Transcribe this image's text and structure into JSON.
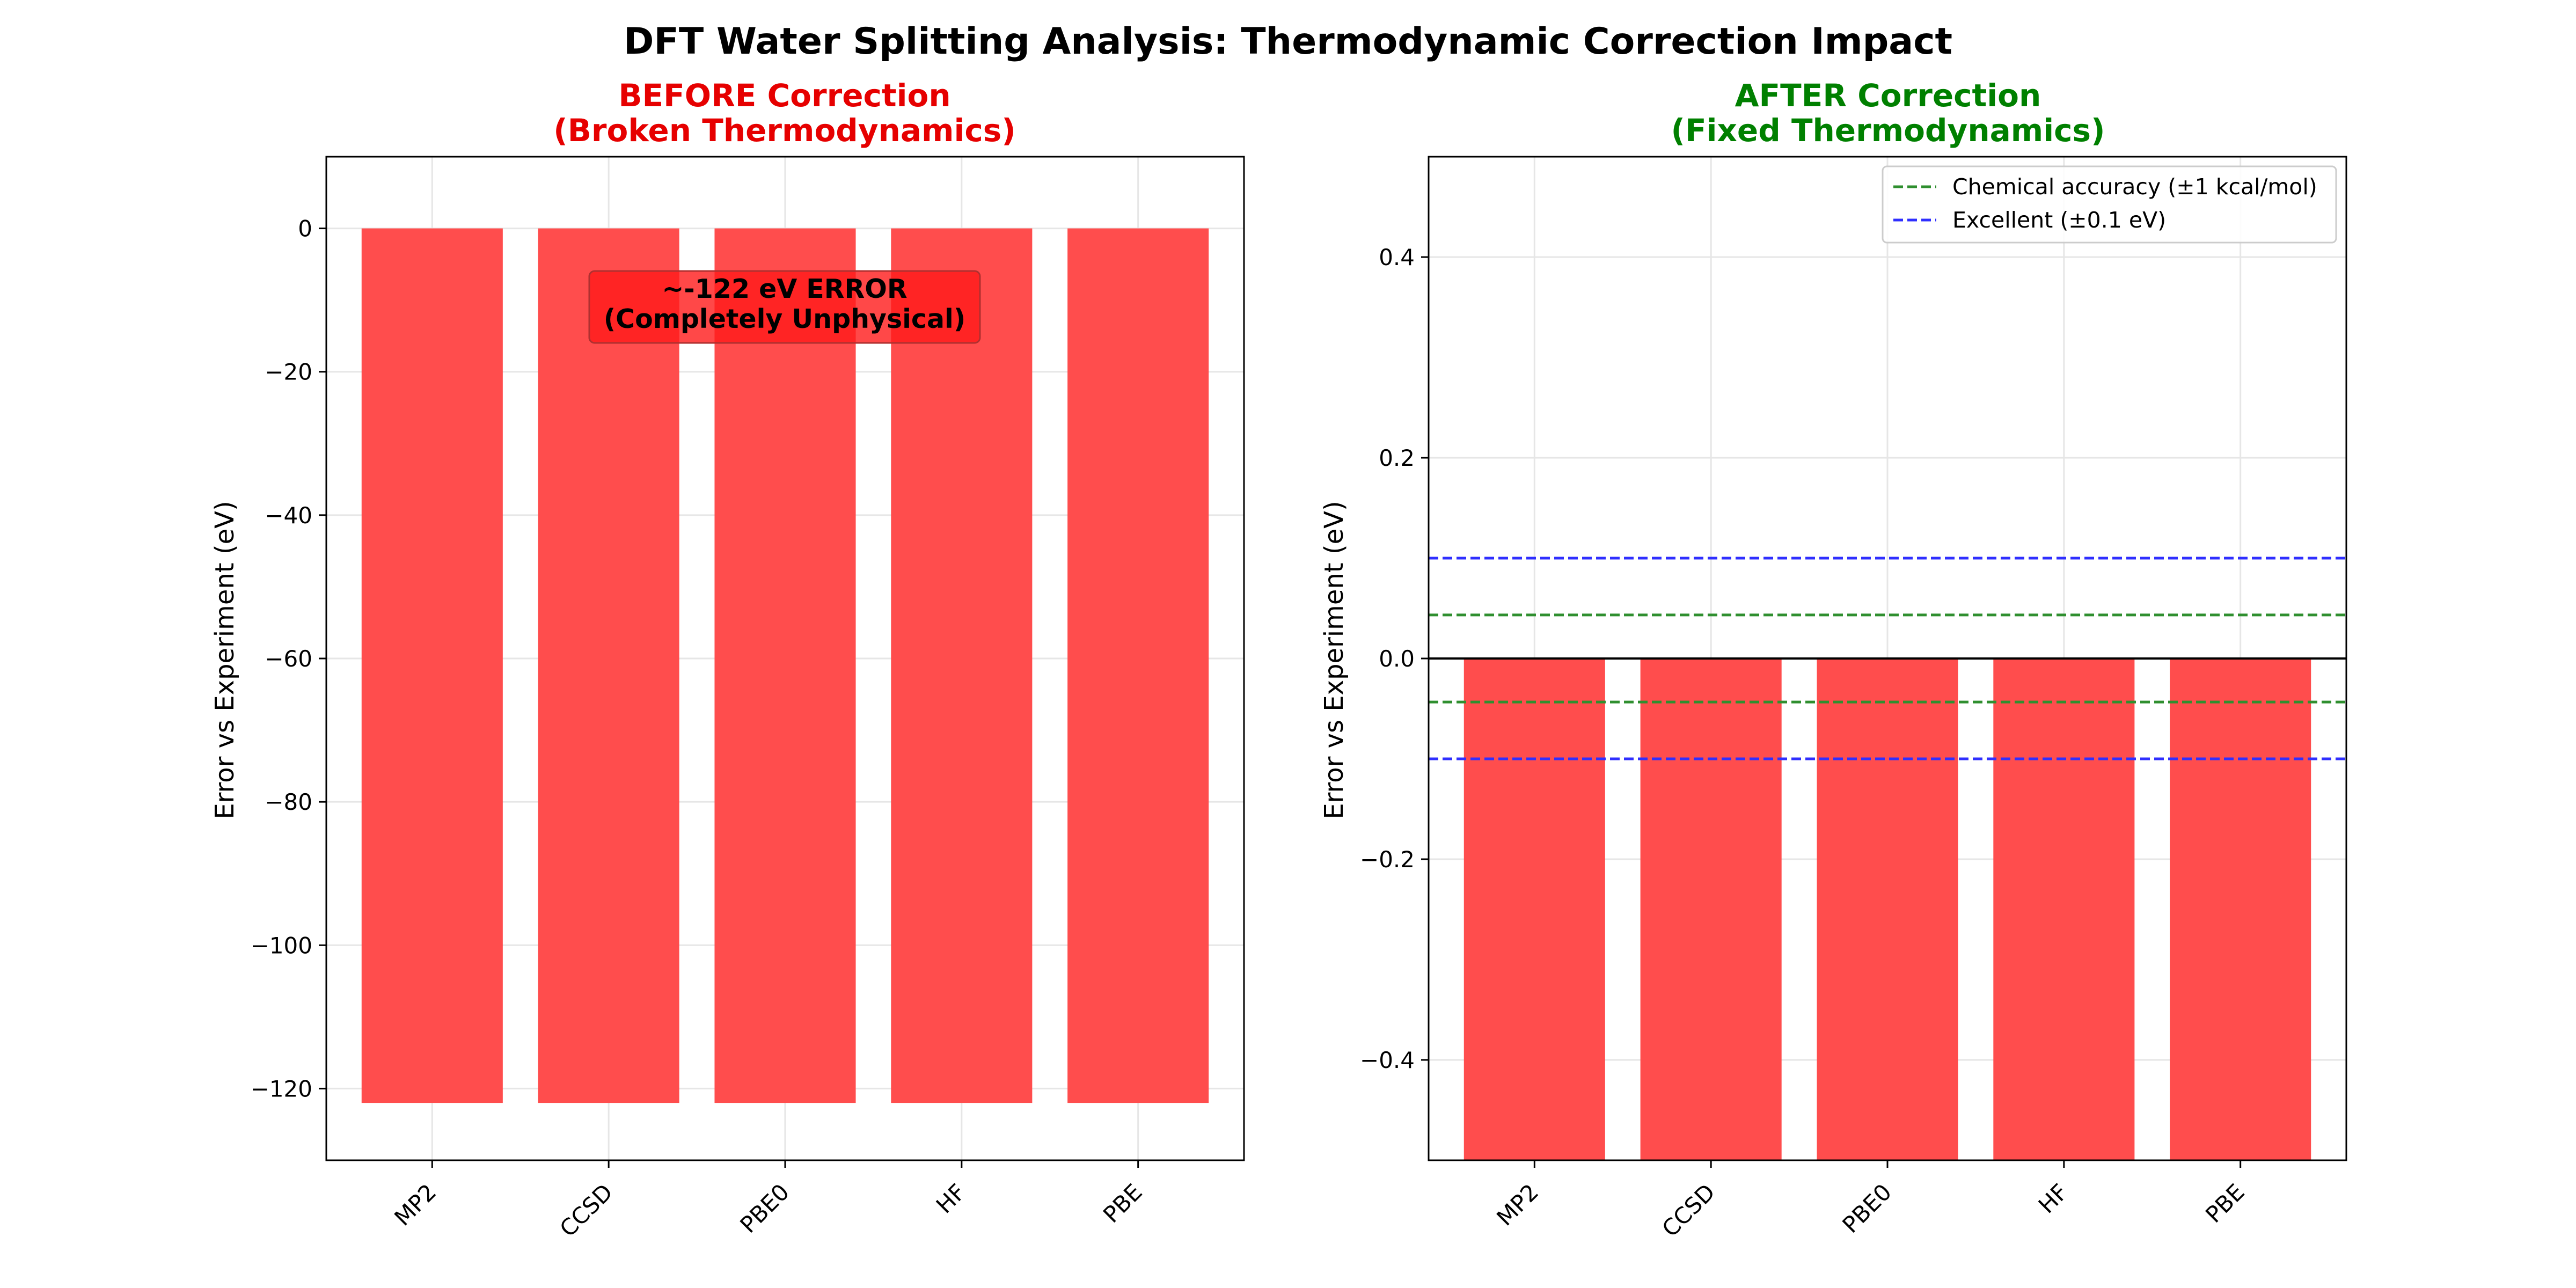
{
  "figure_title": "DFT Water Splitting Analysis: Thermodynamic Correction Impact",
  "colors": {
    "bar": "#ff4d4d",
    "before_title": "#e60000",
    "after_title": "#008000",
    "chemical_accuracy_line": "#2f8f2f",
    "excellent_line": "#2f2fff",
    "grid": "#e6e6e6",
    "annotation_box": "#ff1a1a"
  },
  "chart_data": [
    {
      "type": "bar",
      "title_line1": "BEFORE Correction",
      "title_line2": "(Broken Thermodynamics)",
      "ylabel": "Error vs Experiment (eV)",
      "xlabel": "",
      "categories": [
        "MP2",
        "CCSD",
        "PBE0",
        "HF",
        "PBE"
      ],
      "values": [
        -122,
        -122,
        -122,
        -122,
        -122
      ],
      "ylim": [
        -130,
        10
      ],
      "yticks": [
        0,
        -20,
        -40,
        -60,
        -80,
        -100,
        -120
      ],
      "ytick_labels": [
        "0",
        "−20",
        "−40",
        "−60",
        "−80",
        "−100",
        "−120"
      ],
      "grid": true,
      "annotation_line1": "~-122 eV ERROR",
      "annotation_line2": "(Completely Unphysical)"
    },
    {
      "type": "bar",
      "title_line1": "AFTER Correction",
      "title_line2": "(Fixed Thermodynamics)",
      "ylabel": "Error vs Experiment (eV)",
      "xlabel": "",
      "categories": [
        "MP2",
        "CCSD",
        "PBE0",
        "HF",
        "PBE"
      ],
      "values": [
        -0.5,
        -0.5,
        -0.5,
        -0.5,
        -0.5
      ],
      "ylim": [
        -0.5,
        0.5
      ],
      "yticks": [
        0.4,
        0.2,
        0.0,
        -0.2,
        -0.4
      ],
      "ytick_labels": [
        "0.4",
        "0.2",
        "0.0",
        "−0.2",
        "−0.4"
      ],
      "grid": true,
      "zero_line": true,
      "reference_lines": [
        {
          "name": "Chemical accuracy (±1 kcal/mol)",
          "values": [
            0.0434,
            -0.0434
          ],
          "style": "dashed",
          "color": "#2f8f2f"
        },
        {
          "name": "Excellent (±0.1 eV)",
          "values": [
            0.1,
            -0.1
          ],
          "style": "dashed",
          "color": "#2f2fff"
        }
      ],
      "legend_position": "top-right"
    }
  ]
}
